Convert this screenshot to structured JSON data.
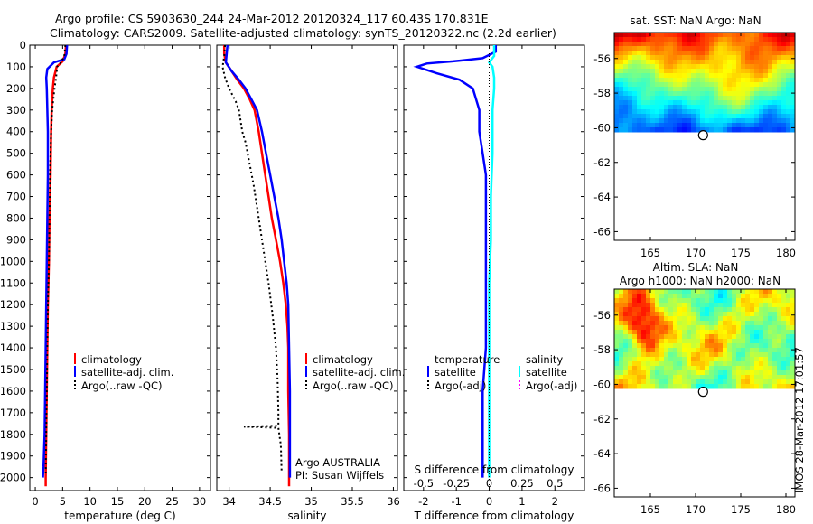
{
  "header": {
    "line1": "Argo profile: CS 5903630_244 24-Mar-2012 20120324_117 60.43S 170.831E",
    "line2": "Climatology: CARS2009. Satellite-adjusted climatology: synTS_20120322.nc (2.2d earlier)"
  },
  "footer": {
    "stamp": "IMOS 28-Mar-2012 17:01:57"
  },
  "colors": {
    "climatology": "#ff0000",
    "satellite": "#0000ff",
    "argo": "#000000",
    "salinity_satellite": "#00ffff",
    "salinity_argo": "#ff00ff"
  },
  "chart_data": [
    {
      "type": "line",
      "id": "temperature",
      "xlabel": "temperature (deg C)",
      "ylabel": "",
      "xlim": [
        -1,
        32
      ],
      "ylim": [
        2060,
        0
      ],
      "xticks": [
        0,
        5,
        10,
        15,
        20,
        25,
        30
      ],
      "yticks": [
        0,
        100,
        200,
        300,
        400,
        500,
        600,
        700,
        800,
        900,
        1000,
        1100,
        1200,
        1300,
        1400,
        1500,
        1600,
        1700,
        1800,
        1900,
        2000
      ],
      "legend": [
        "climatology",
        "satellite-adj. clim.",
        "Argo(..raw -QC)"
      ],
      "series": [
        {
          "name": "climatology",
          "color": "#ff0000",
          "style": "solid",
          "points": [
            [
              5.6,
              0
            ],
            [
              5.5,
              40
            ],
            [
              5.0,
              75
            ],
            [
              3.9,
              100
            ],
            [
              3.4,
              150
            ],
            [
              3.2,
              200
            ],
            [
              3.0,
              300
            ],
            [
              2.9,
              400
            ],
            [
              2.8,
              600
            ],
            [
              2.6,
              800
            ],
            [
              2.5,
              1000
            ],
            [
              2.3,
              1200
            ],
            [
              2.2,
              1400
            ],
            [
              2.1,
              1600
            ],
            [
              2.0,
              1800
            ],
            [
              1.9,
              2000
            ],
            [
              1.9,
              2040
            ]
          ]
        },
        {
          "name": "satellite-adj. clim.",
          "color": "#0000ff",
          "style": "solid",
          "points": [
            [
              5.8,
              0
            ],
            [
              5.7,
              40
            ],
            [
              5.3,
              65
            ],
            [
              3.4,
              80
            ],
            [
              2.2,
              110
            ],
            [
              2.0,
              150
            ],
            [
              2.1,
              200
            ],
            [
              2.2,
              300
            ],
            [
              2.3,
              400
            ],
            [
              2.3,
              600
            ],
            [
              2.2,
              800
            ],
            [
              2.1,
              1000
            ],
            [
              2.0,
              1200
            ],
            [
              1.9,
              1400
            ],
            [
              1.8,
              1600
            ],
            [
              1.7,
              1800
            ],
            [
              1.5,
              1950
            ],
            [
              1.4,
              2000
            ]
          ]
        },
        {
          "name": "Argo(..raw -QC)",
          "color": "#000000",
          "style": "dotted",
          "points": [
            [
              5.5,
              0
            ],
            [
              5.3,
              50
            ],
            [
              4.7,
              80
            ],
            [
              4.0,
              100
            ],
            [
              3.8,
              150
            ],
            [
              3.5,
              200
            ],
            [
              3.1,
              300
            ],
            [
              2.9,
              400
            ],
            [
              2.7,
              600
            ],
            [
              2.6,
              800
            ],
            [
              2.5,
              1000
            ],
            [
              2.3,
              1200
            ],
            [
              2.2,
              1400
            ],
            [
              2.1,
              1600
            ],
            [
              2.0,
              1800
            ],
            [
              1.9,
              1980
            ]
          ]
        }
      ]
    },
    {
      "type": "line",
      "id": "salinity",
      "xlabel": "salinity",
      "xlim": [
        33.85,
        36.05
      ],
      "ylim": [
        2060,
        0
      ],
      "xticks": [
        34,
        34.5,
        35,
        35.5,
        36
      ],
      "legend": [
        "climatology",
        "satellite-adj. clim.",
        "Argo(..raw -QC)"
      ],
      "annotation": [
        "Argo AUSTRALIA",
        "PI: Susan Wijffels"
      ],
      "series": [
        {
          "name": "climatology",
          "color": "#ff0000",
          "style": "solid",
          "points": [
            [
              33.94,
              0
            ],
            [
              33.94,
              40
            ],
            [
              33.96,
              80
            ],
            [
              34.03,
              120
            ],
            [
              34.1,
              160
            ],
            [
              34.18,
              200
            ],
            [
              34.25,
              250
            ],
            [
              34.31,
              300
            ],
            [
              34.36,
              400
            ],
            [
              34.4,
              500
            ],
            [
              34.44,
              600
            ],
            [
              34.48,
              700
            ],
            [
              34.52,
              800
            ],
            [
              34.57,
              900
            ],
            [
              34.62,
              1000
            ],
            [
              34.66,
              1100
            ],
            [
              34.69,
              1200
            ],
            [
              34.71,
              1300
            ],
            [
              34.72,
              1400
            ],
            [
              34.72,
              1600
            ],
            [
              34.73,
              1800
            ],
            [
              34.73,
              2000
            ],
            [
              34.73,
              2040
            ]
          ]
        },
        {
          "name": "satellite-adj. clim.",
          "color": "#0000ff",
          "style": "solid",
          "points": [
            [
              33.98,
              0
            ],
            [
              33.97,
              40
            ],
            [
              33.96,
              80
            ],
            [
              34.03,
              120
            ],
            [
              34.12,
              160
            ],
            [
              34.2,
              200
            ],
            [
              34.27,
              250
            ],
            [
              34.34,
              300
            ],
            [
              34.4,
              400
            ],
            [
              34.45,
              500
            ],
            [
              34.5,
              600
            ],
            [
              34.55,
              700
            ],
            [
              34.6,
              800
            ],
            [
              34.64,
              900
            ],
            [
              34.67,
              1000
            ],
            [
              34.7,
              1100
            ],
            [
              34.72,
              1200
            ],
            [
              34.73,
              1400
            ],
            [
              34.74,
              1600
            ],
            [
              34.74,
              1800
            ],
            [
              34.74,
              2000
            ]
          ]
        },
        {
          "name": "Argo(..raw -QC)",
          "color": "#000000",
          "style": "dotted",
          "points": [
            [
              33.95,
              0
            ],
            [
              33.94,
              50
            ],
            [
              33.92,
              100
            ],
            [
              33.95,
              150
            ],
            [
              34.0,
              200
            ],
            [
              34.08,
              260
            ],
            [
              34.12,
              300
            ],
            [
              34.16,
              400
            ],
            [
              34.2,
              450
            ],
            [
              34.25,
              550
            ],
            [
              34.3,
              650
            ],
            [
              34.36,
              800
            ],
            [
              34.42,
              950
            ],
            [
              34.48,
              1100
            ],
            [
              34.53,
              1250
            ],
            [
              34.57,
              1400
            ],
            [
              34.59,
              1550
            ],
            [
              34.6,
              1700
            ],
            [
              34.6,
              1760
            ],
            [
              34.18,
              1765
            ],
            [
              34.6,
              1770
            ],
            [
              34.63,
              1850
            ],
            [
              34.64,
              1980
            ]
          ]
        }
      ]
    },
    {
      "type": "line",
      "id": "difference",
      "xlabel": "T difference from climatology",
      "xlabel_top": "S difference from climatology",
      "xlim": [
        -2.6,
        2.9
      ],
      "ylim": [
        2060,
        0
      ],
      "xticks": [
        -2,
        -1,
        0,
        1,
        2
      ],
      "xticks_S": [
        "-0.5",
        "-0.25",
        "0",
        "0.25",
        "0.5"
      ],
      "xticks_S_pos": [
        -2,
        -1,
        0,
        1,
        2
      ],
      "legend_left": [
        "temperature",
        "satellite",
        "Argo(-adj)"
      ],
      "legend_right": [
        "salinity",
        "satellite",
        "Argo(-adj)"
      ],
      "series": [
        {
          "name": "satellite",
          "color": "#0000ff",
          "style": "solid",
          "points": [
            [
              0.2,
              0
            ],
            [
              0.2,
              30
            ],
            [
              -0.2,
              60
            ],
            [
              -1.1,
              75
            ],
            [
              -1.9,
              85
            ],
            [
              -2.2,
              100
            ],
            [
              -1.6,
              130
            ],
            [
              -0.9,
              160
            ],
            [
              -0.5,
              200
            ],
            [
              -0.3,
              300
            ],
            [
              -0.3,
              400
            ],
            [
              -0.2,
              500
            ],
            [
              -0.1,
              600
            ],
            [
              -0.1,
              700
            ],
            [
              -0.1,
              800
            ],
            [
              -0.1,
              900
            ],
            [
              -0.1,
              1000
            ],
            [
              -0.1,
              1100
            ],
            [
              -0.1,
              1200
            ],
            [
              -0.1,
              1300
            ],
            [
              -0.1,
              1400
            ],
            [
              -0.2,
              1600
            ],
            [
              -0.2,
              1800
            ],
            [
              -0.2,
              2000
            ]
          ]
        },
        {
          "name": "salinity satellite",
          "color": "#00ffff",
          "style": "solid",
          "points": [
            [
              0.15,
              0
            ],
            [
              0.15,
              50
            ],
            [
              0.0,
              80
            ],
            [
              0.1,
              100
            ],
            [
              0.15,
              150
            ],
            [
              0.15,
              200
            ],
            [
              0.1,
              300
            ],
            [
              0.1,
              500
            ],
            [
              0.05,
              700
            ],
            [
              0.05,
              900
            ],
            [
              0.0,
              1100
            ],
            [
              0.0,
              1300
            ],
            [
              0.0,
              1500
            ],
            [
              0.0,
              1700
            ],
            [
              0.0,
              2000
            ]
          ]
        },
        {
          "name": "zero",
          "color": "#000000",
          "style": "dotted",
          "points": [
            [
              0,
              0
            ],
            [
              0,
              2040
            ]
          ]
        }
      ]
    },
    {
      "type": "heatmap",
      "id": "sst_map",
      "title": "sat. SST: NaN Argo: NaN",
      "xlim": [
        161,
        181
      ],
      "ylim": [
        -66.5,
        -54.5
      ],
      "xticks": [
        165,
        170,
        175,
        180
      ],
      "yticks": [
        -56,
        -58,
        -60,
        -62,
        -64,
        -66
      ],
      "data_lat_range": [
        -54.5,
        -60.2
      ],
      "marker": {
        "lon": 170.831,
        "lat": -60.43
      }
    },
    {
      "type": "heatmap",
      "id": "sla_map",
      "title": "Altim. SLA: NaN",
      "subtitle": "Argo h1000: NaN h2000: NaN",
      "xlim": [
        161,
        181
      ],
      "ylim": [
        -66.5,
        -54.5
      ],
      "xticks": [
        165,
        170,
        175,
        180
      ],
      "yticks": [
        -56,
        -58,
        -60,
        -62,
        -64,
        -66
      ],
      "data_lat_range": [
        -54.5,
        -60.2
      ],
      "marker": {
        "lon": 170.831,
        "lat": -60.43
      }
    }
  ]
}
